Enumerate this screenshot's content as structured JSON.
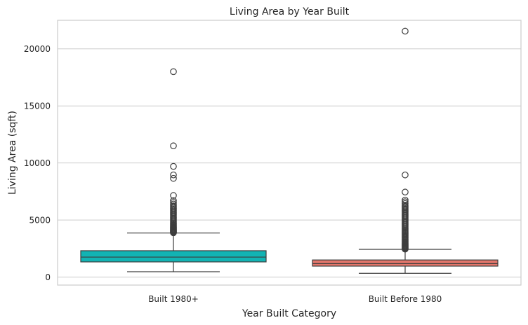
{
  "chart_data": {
    "type": "box",
    "title": "Living Area by Year Built",
    "xlabel": "Year Built Category",
    "ylabel": "Living Area (sqft)",
    "ylim": [
      -700,
      22500
    ],
    "yticks": [
      0,
      5000,
      10000,
      15000,
      20000
    ],
    "ytick_labels": [
      "0",
      "5000",
      "10000",
      "15000",
      "20000"
    ],
    "grid": true,
    "categories": [
      "Built 1980+",
      "Built Before 1980"
    ],
    "series": [
      {
        "category": "Built 1980+",
        "color": "#12B3B3",
        "whisker_low": 470,
        "q1": 1330,
        "median": 1750,
        "q3": 2310,
        "whisker_high": 3860,
        "outliers": [
          3880,
          3920,
          3960,
          4000,
          4050,
          4100,
          4150,
          4200,
          4260,
          4320,
          4380,
          4450,
          4520,
          4600,
          4680,
          4760,
          4850,
          4950,
          5050,
          5150,
          5250,
          5350,
          5450,
          5550,
          5650,
          5750,
          5850,
          5950,
          6050,
          6150,
          6250,
          6400,
          6550,
          6700,
          7150,
          8650,
          8950,
          9700,
          11500,
          18000
        ]
      },
      {
        "category": "Built Before 1980",
        "color": "#E2766B",
        "whisker_low": 330,
        "q1": 960,
        "median": 1180,
        "q3": 1500,
        "whisker_high": 2430,
        "outliers": [
          2450,
          2500,
          2550,
          2600,
          2650,
          2700,
          2760,
          2820,
          2880,
          2950,
          3020,
          3090,
          3160,
          3240,
          3320,
          3400,
          3480,
          3560,
          3650,
          3740,
          3830,
          3920,
          4010,
          4100,
          4200,
          4300,
          4400,
          4500,
          4600,
          4700,
          4800,
          4900,
          5000,
          5100,
          5200,
          5300,
          5400,
          5500,
          5600,
          5700,
          5800,
          5900,
          6000,
          6100,
          6200,
          6300,
          6450,
          6600,
          6750,
          7450,
          8950,
          21550
        ]
      }
    ]
  }
}
